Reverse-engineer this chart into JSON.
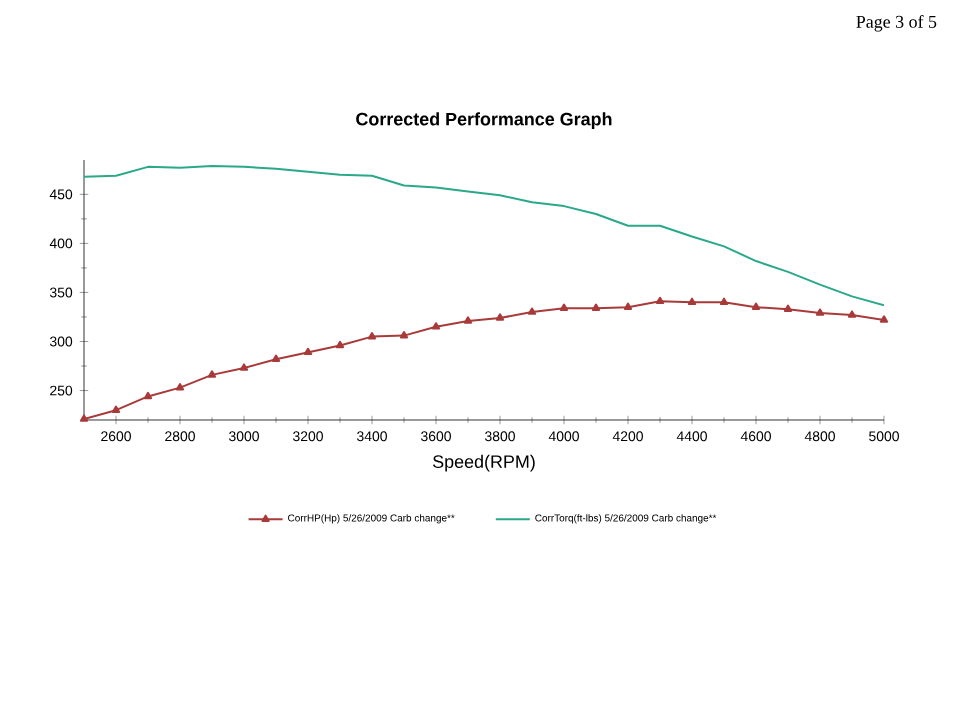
{
  "chart_data": {
    "type": "line",
    "title": "Corrected Performance Graph",
    "xlabel": "Speed(RPM)",
    "annotations": [
      "Page 3 of 5"
    ],
    "x": [
      2500,
      2600,
      2700,
      2800,
      2900,
      3000,
      3100,
      3200,
      3300,
      3400,
      3500,
      3600,
      3700,
      3800,
      3900,
      4000,
      4100,
      4200,
      4300,
      4400,
      4500,
      4600,
      4700,
      4800,
      4900,
      5000
    ],
    "series": [
      {
        "name": "CorrHP(Hp) 5/26/2009 Carb change**",
        "color": "#a83a3a",
        "marker": "triangle",
        "values": [
          221,
          230,
          244,
          253,
          266,
          273,
          282,
          289,
          296,
          305,
          306,
          315,
          321,
          324,
          330,
          334,
          334,
          335,
          341,
          340,
          340,
          335,
          333,
          329,
          327,
          322
        ]
      },
      {
        "name": "CorrTorq(ft-lbs) 5/26/2009 Carb change**",
        "color": "#2aa88a",
        "marker": "none",
        "values": [
          468,
          469,
          478,
          477,
          479,
          478,
          476,
          473,
          470,
          469,
          459,
          457,
          453,
          449,
          442,
          438,
          430,
          418,
          418,
          407,
          397,
          382,
          371,
          358,
          346,
          337
        ]
      }
    ],
    "xlim": [
      2500,
      5000
    ],
    "xticks": [
      2600,
      2800,
      3000,
      3200,
      3400,
      3600,
      3800,
      4000,
      4200,
      4400,
      4600,
      4800,
      5000
    ],
    "ylim": [
      220,
      485
    ],
    "yticks": [
      250,
      300,
      350,
      400,
      450
    ],
    "grid": false,
    "legend": "bottom"
  }
}
